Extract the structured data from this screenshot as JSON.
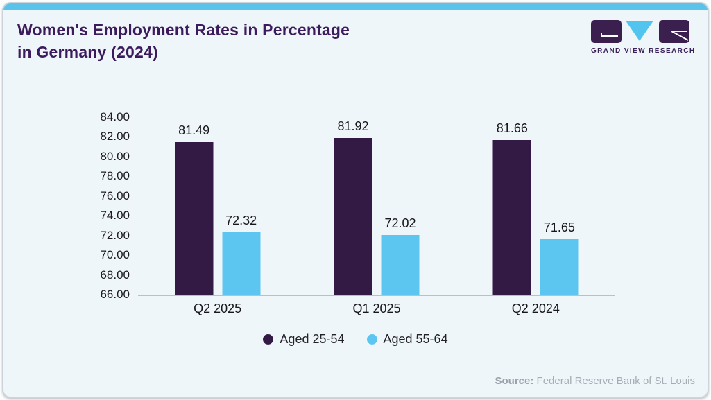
{
  "header": {
    "title_line1": "Women's Employment Rates in Percentage",
    "title_line2": "in Germany (2024)",
    "logo_text": "GRAND VIEW RESEARCH"
  },
  "chart_data": {
    "type": "bar",
    "title": "Women's Employment Rates in Percentage in Germany (2024)",
    "categories": [
      "Q2 2025",
      "Q1 2025",
      "Q2 2024"
    ],
    "series": [
      {
        "name": "Aged 25-54",
        "color": "#331a44",
        "values": [
          81.49,
          81.92,
          81.66
        ]
      },
      {
        "name": "Aged 55-64",
        "color": "#5cc6f0",
        "values": [
          72.32,
          72.02,
          71.65
        ]
      }
    ],
    "ylim": [
      66,
      84
    ],
    "tick_step": 2,
    "tick_decimals": 2,
    "value_label_decimals": 2,
    "grid": false,
    "legend_position": "bottom-center"
  },
  "source": {
    "label": "Source:",
    "text": "Federal Reserve Bank of St. Louis"
  },
  "colors": {
    "accent_bar": "#5bc3ea",
    "card_bg": "#eff6fa",
    "card_border": "#ccd5dc",
    "title": "#3b1b5c",
    "axis_line": "#b9c0c8",
    "text": "#1b1b1f",
    "source_text": "#a6adb4",
    "bar_dark": "#331a44",
    "bar_blue": "#5cc6f0",
    "logo_purple": "#3a1f4f",
    "logo_blue": "#52c5ef"
  }
}
